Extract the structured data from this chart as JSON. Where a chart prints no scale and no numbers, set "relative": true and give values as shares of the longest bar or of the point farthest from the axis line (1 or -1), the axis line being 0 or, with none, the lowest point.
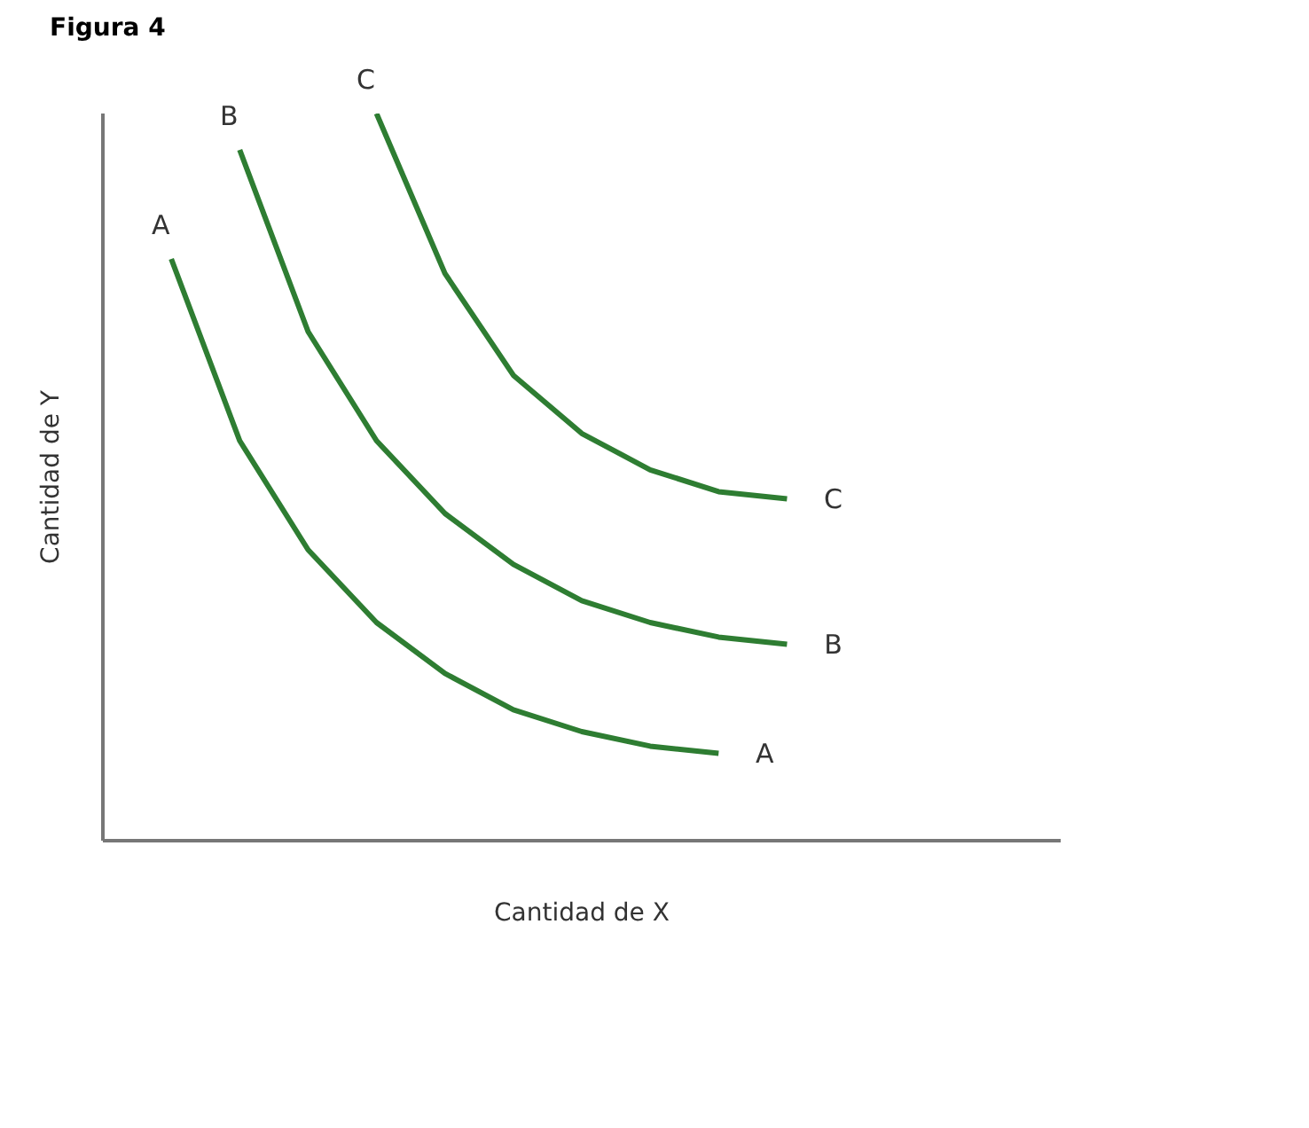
{
  "chart_data": {
    "type": "line",
    "title": "Figura 4",
    "xlabel": "Cantidad de X",
    "ylabel": "Cantidad de Y",
    "relative": true,
    "categories": [
      null,
      null,
      null,
      null,
      null,
      null,
      null,
      null,
      null,
      null,
      null,
      null,
      null,
      null,
      null
    ],
    "series": [
      {
        "name": "A",
        "color": "#2e7d32",
        "values": [
          null,
          0.8,
          0.55,
          0.4,
          0.3,
          0.23,
          0.18,
          0.15,
          0.13,
          0.12,
          null,
          null,
          null,
          null,
          null
        ]
      },
      {
        "name": "B",
        "color": "#2e7d32",
        "values": [
          null,
          null,
          0.95,
          0.7,
          0.55,
          0.45,
          0.38,
          0.33,
          0.3,
          0.28,
          0.27,
          null,
          null,
          null,
          null
        ]
      },
      {
        "name": "C",
        "color": "#2e7d32",
        "values": [
          null,
          null,
          null,
          null,
          1.0,
          0.78,
          0.64,
          0.56,
          0.51,
          0.48,
          0.47,
          null,
          null,
          null,
          null
        ]
      }
    ],
    "grid": false,
    "legend": false,
    "marker": "none",
    "line_style": "solid"
  }
}
